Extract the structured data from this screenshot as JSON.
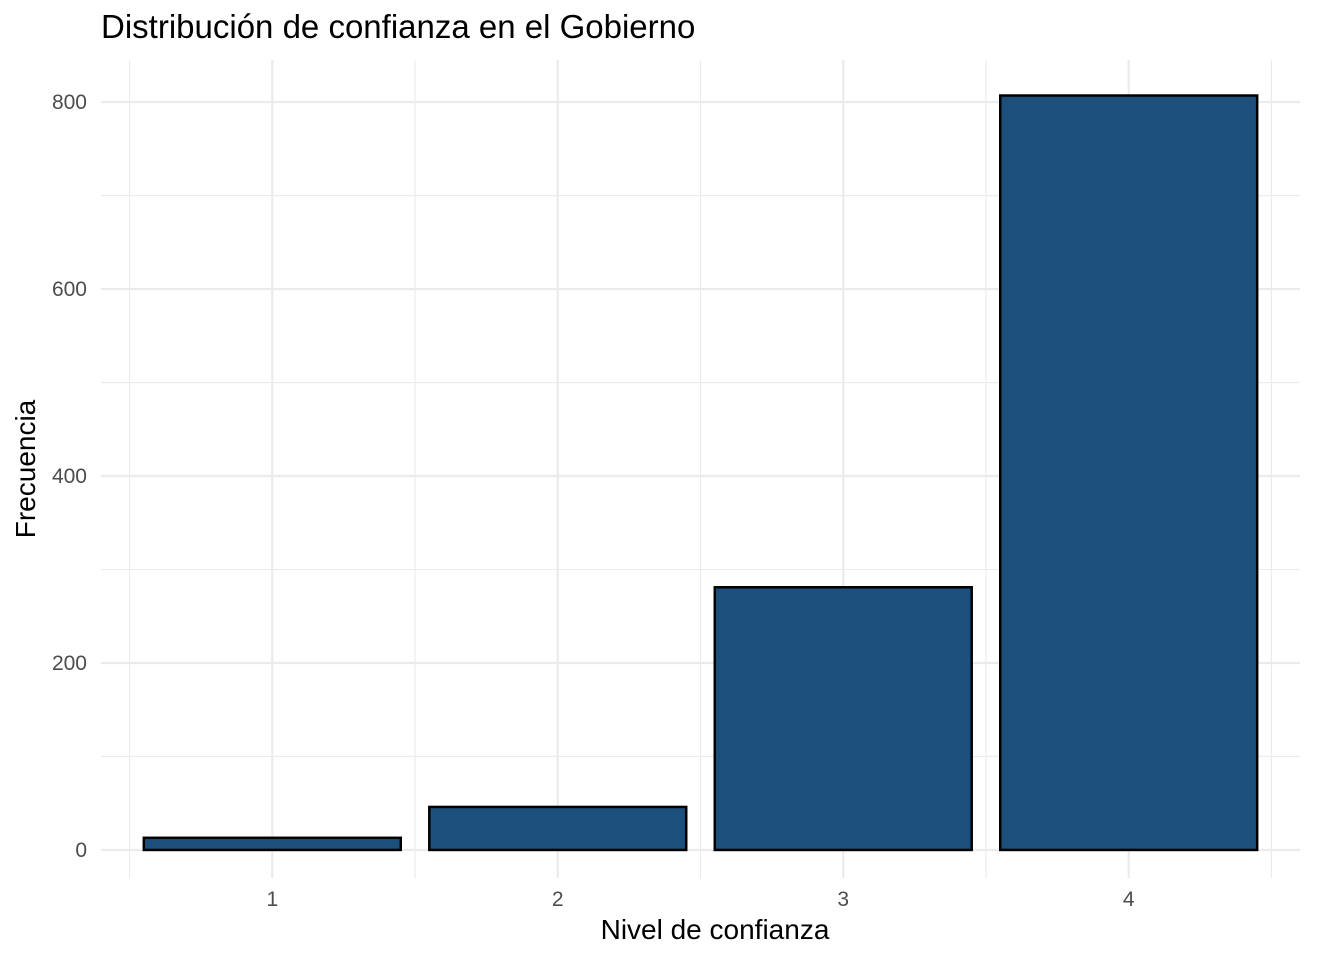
{
  "chart_data": {
    "type": "bar",
    "title": "Distribución de confianza en el Gobierno",
    "xlabel": "Nivel de confianza",
    "ylabel": "Frecuencia",
    "categories": [
      "1",
      "2",
      "3",
      "4"
    ],
    "values": [
      13,
      46,
      281,
      807
    ],
    "ylim": [
      -30,
      845
    ],
    "yticks": [
      0,
      200,
      400,
      600,
      800
    ],
    "yticks_minor": [
      100,
      300,
      500,
      700
    ],
    "grid": true,
    "bar_fill": "#1c4f7c",
    "bar_stroke": "#000000"
  }
}
